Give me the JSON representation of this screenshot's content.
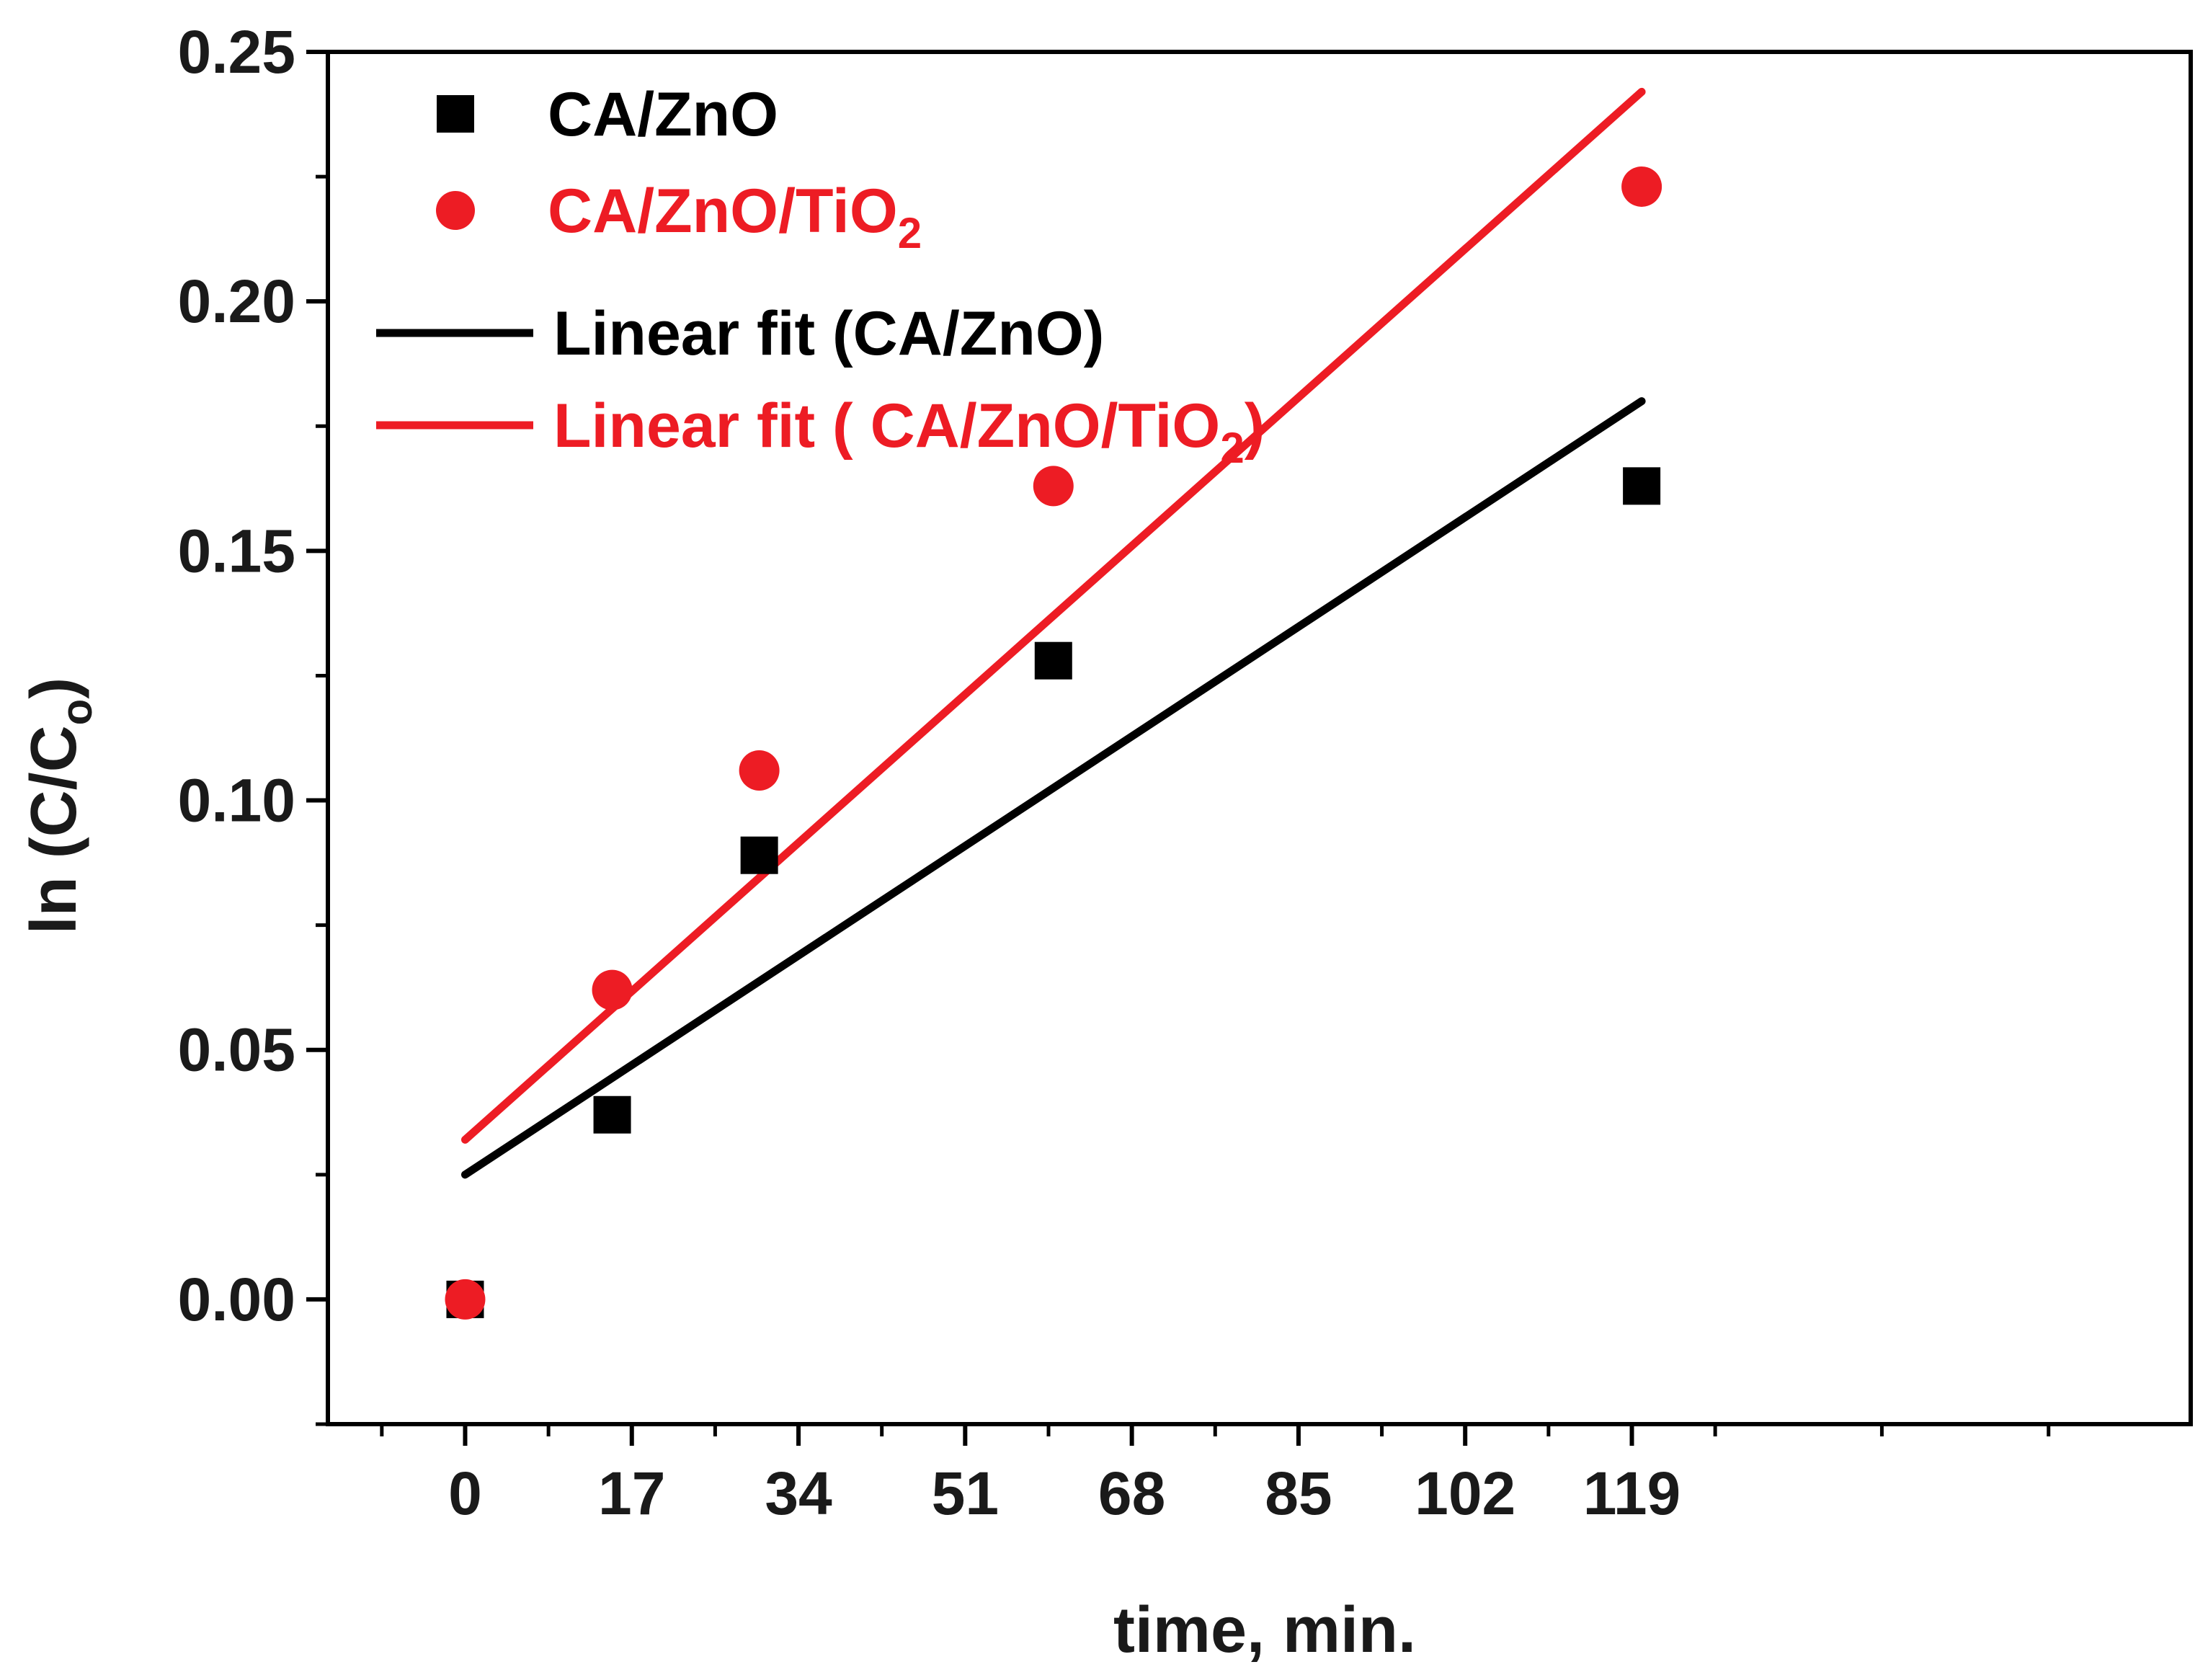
{
  "chart_data": {
    "type": "scatter",
    "title": "",
    "xlabel": "time, min.",
    "ylabel": {
      "main": "ln (C/C",
      "sub": "o",
      "close": ")"
    },
    "xlim": [
      -14,
      176
    ],
    "ylim": [
      -0.025,
      0.25
    ],
    "xticks": [
      0,
      17,
      34,
      51,
      68,
      85,
      102,
      119
    ],
    "yticks": [
      0.0,
      0.05,
      0.1,
      0.15,
      0.2,
      0.25
    ],
    "ytick_labels": [
      "0.00",
      "0.05",
      "0.10",
      "0.15",
      "0.20",
      "0.25"
    ],
    "grid": false,
    "legend_position": "top-left",
    "series": [
      {
        "name": "CA/ZnO",
        "legend": {
          "main": "CA/ZnO",
          "sub": "",
          "tail": ""
        },
        "marker": "square",
        "color": "#000000",
        "x": [
          0,
          15,
          30,
          60,
          120
        ],
        "y": [
          0.0,
          0.037,
          0.089,
          0.128,
          0.163
        ]
      },
      {
        "name": "CA/ZnO/TiO2",
        "legend": {
          "main": "CA/ZnO/TiO",
          "sub": "2",
          "tail": ""
        },
        "marker": "circle",
        "color": "#ed1c24",
        "x": [
          0,
          15,
          30,
          60,
          120
        ],
        "y": [
          0.0,
          0.062,
          0.106,
          0.163,
          0.223
        ]
      }
    ],
    "fits": [
      {
        "name": "Linear fit (CA/ZnO)",
        "legend": {
          "main": "Linear fit (CA/ZnO)",
          "sub": "",
          "tail": ""
        },
        "color": "#000000",
        "x": [
          0,
          120
        ],
        "y": [
          0.025,
          0.18
        ]
      },
      {
        "name": "Linear fit ( CA/ZnO/TiO2)",
        "legend": {
          "main": "Linear fit ( CA/ZnO/TiO",
          "sub": "2",
          "tail": ")"
        },
        "color": "#ed1c24",
        "x": [
          0,
          120
        ],
        "y": [
          0.032,
          0.242
        ]
      }
    ]
  }
}
